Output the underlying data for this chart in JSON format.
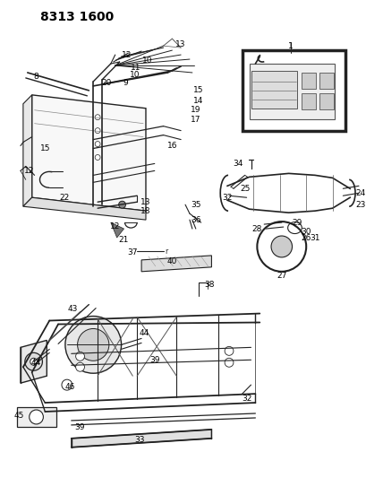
{
  "title": "8313 1600",
  "background_color": "#ffffff",
  "title_fontsize": 10,
  "title_fontweight": "bold",
  "fig_width": 4.1,
  "fig_height": 5.33,
  "dpi": 100
}
